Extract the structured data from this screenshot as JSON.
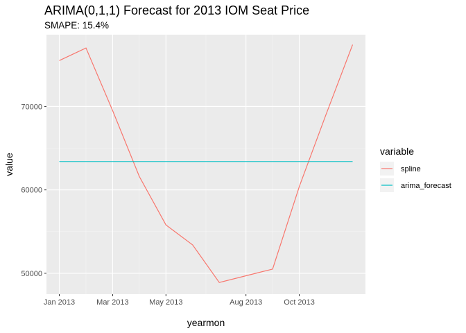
{
  "chart_data": {
    "type": "line",
    "title": "ARIMA(0,1,1) Forecast for 2013 IOM Seat Price",
    "subtitle": "SMAPE: 15.4%",
    "xlabel": "yearmon",
    "ylabel": "value",
    "x": [
      "Jan 2013",
      "Feb 2013",
      "Mar 2013",
      "Apr 2013",
      "May 2013",
      "Jun 2013",
      "Jul 2013",
      "Aug 2013",
      "Sep 2013",
      "Oct 2013",
      "Nov 2013",
      "Dec 2013"
    ],
    "x_ticks": [
      "Jan 2013",
      "Mar 2013",
      "May 2013",
      "Aug 2013",
      "Oct 2013"
    ],
    "y_ticks": [
      50000,
      60000,
      70000
    ],
    "ylim": [
      47500,
      78600
    ],
    "legend": {
      "title": "variable",
      "position": "right"
    },
    "grid": true,
    "series": [
      {
        "name": "spline",
        "color": "#F8766D",
        "values": [
          75500,
          77000,
          69500,
          61600,
          55800,
          53400,
          48900,
          49700,
          50500,
          60400,
          69000,
          77400
        ]
      },
      {
        "name": "arima_forecast",
        "color": "#00BFC4",
        "values": [
          63400,
          63400,
          63400,
          63400,
          63400,
          63400,
          63400,
          63400,
          63400,
          63400,
          63400,
          63400
        ]
      }
    ]
  }
}
